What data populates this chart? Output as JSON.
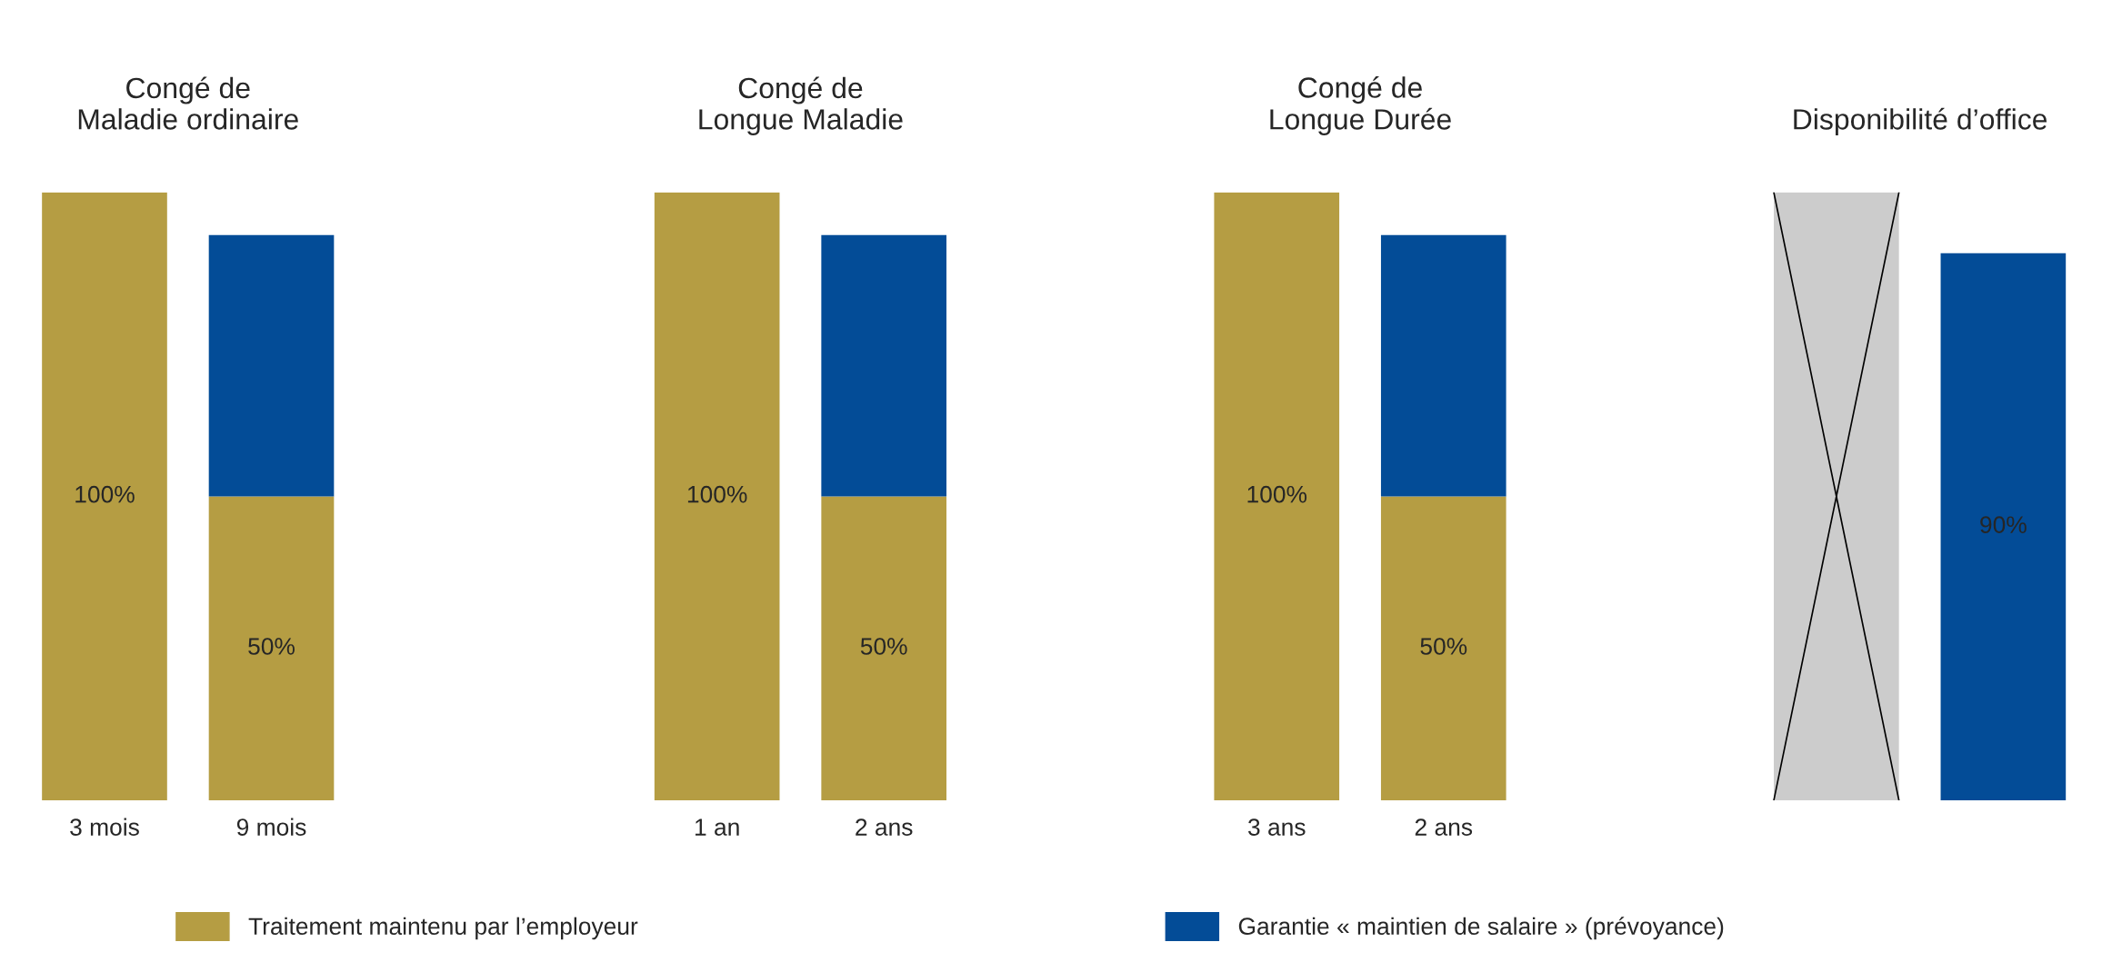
{
  "chart_data": [
    {
      "type": "bar",
      "title": "Congé de\nMaladie ordinaire",
      "stacked": true,
      "tick_labels": "x",
      "legend": "bottom",
      "categories": [
        "3 mois",
        "9 mois"
      ],
      "series": [
        {
          "name": "Traitement maintenu par l’employeur",
          "color": "#b59d43",
          "values": [
            100,
            50
          ],
          "value_labels": [
            "100%",
            "50%"
          ]
        },
        {
          "name": "Garantie « maintien de salaire » (prévoyance)",
          "color": "#034c97",
          "values": [
            null,
            43
          ]
        }
      ]
    },
    {
      "type": "bar",
      "title": "Congé de\nLongue Maladie",
      "stacked": true,
      "tick_labels": "x",
      "categories": [
        "1 an",
        "2 ans"
      ],
      "series": [
        {
          "color": "#b59d43",
          "values": [
            100,
            50
          ],
          "value_labels": [
            "100%",
            "50%"
          ]
        },
        {
          "color": "#034c97",
          "values": [
            null,
            43
          ]
        }
      ]
    },
    {
      "type": "bar",
      "title": "Congé de\nLongue Durée",
      "stacked": true,
      "tick_labels": "x",
      "categories": [
        "3 ans",
        "2 ans"
      ],
      "series": [
        {
          "color": "#b59d43",
          "values": [
            100,
            50
          ],
          "value_labels": [
            "100%",
            "50%"
          ]
        },
        {
          "color": "#034c97",
          "values": [
            null,
            43
          ]
        }
      ]
    },
    {
      "type": "bar",
      "title": "Disponibilité d’office",
      "stacked": true,
      "tick_labels": "x",
      "categories": [
        null,
        null
      ],
      "series": [
        {
          "color": "#cccccc",
          "values": [
            100,
            null
          ]
        },
        {
          "color": "#034c97",
          "values": [
            null,
            90
          ],
          "value_labels": [
            null,
            "90%"
          ]
        }
      ]
    }
  ]
}
